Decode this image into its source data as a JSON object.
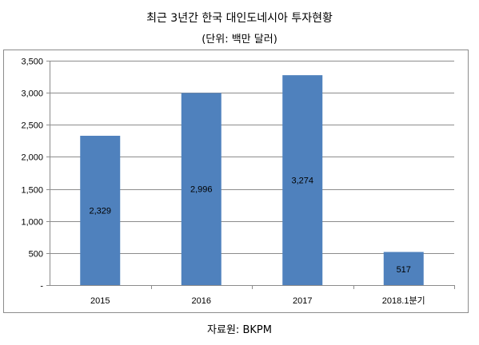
{
  "chart_data": {
    "type": "bar",
    "title": "최근 3년간 한국 대인도네시아 투자현황",
    "subtitle": "(단위: 백만 달러)",
    "categories": [
      "2015",
      "2016",
      "2017",
      "2018.1분기"
    ],
    "values": [
      2329,
      2996,
      3274,
      517
    ],
    "data_labels": [
      "2,329",
      "2,996",
      "3,274",
      "517"
    ],
    "yticks": [
      "-",
      "500",
      "1,000",
      "1,500",
      "2,000",
      "2,500",
      "3,000",
      "3,500"
    ],
    "ylim": [
      0,
      3500
    ],
    "grid": true,
    "bar_color": "#4f81bd",
    "grid_color": "#8c8c8c",
    "source": "자료원: BKPM"
  }
}
